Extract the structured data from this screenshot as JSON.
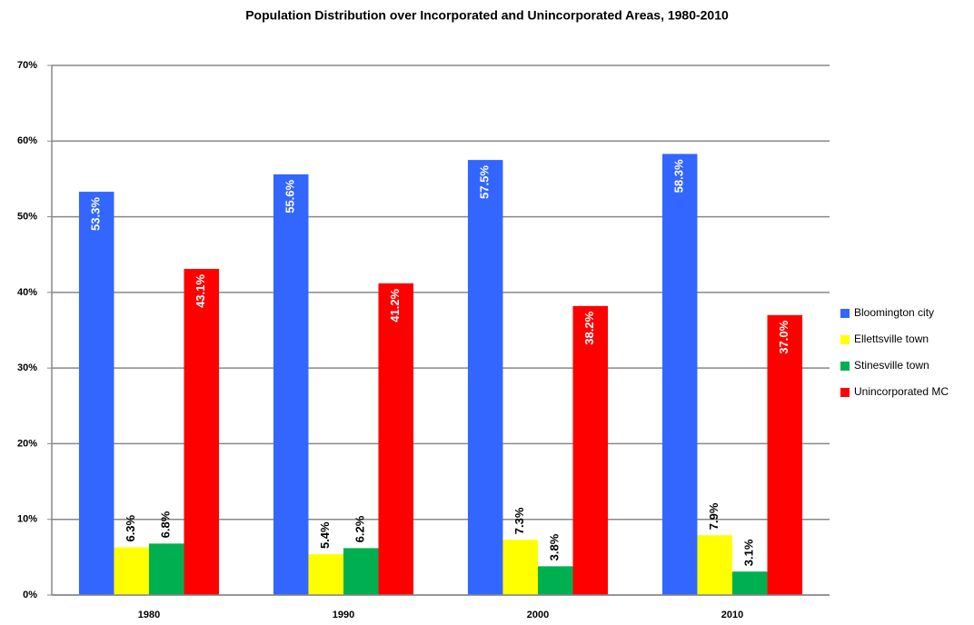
{
  "chart_data": {
    "type": "bar",
    "title": "Population Distribution over Incorporated and Unincorporated Areas, 1980-2010",
    "categories": [
      "1980",
      "1990",
      "2000",
      "2010"
    ],
    "series": [
      {
        "name": "Bloomington city",
        "color": "#3366ff",
        "values": [
          53.3,
          55.6,
          57.5,
          58.3
        ],
        "value_labels": [
          "53.3%",
          "55.6%",
          "57.5%",
          "58.3%"
        ]
      },
      {
        "name": "Ellettsville town",
        "color": "#ffff00",
        "values": [
          6.3,
          5.4,
          7.3,
          7.9
        ],
        "value_labels": [
          "6.3%",
          "5.4%",
          "7.3%",
          "7.9%"
        ]
      },
      {
        "name": "Stinesville town",
        "color": "#00b050",
        "values": [
          6.8,
          6.2,
          3.8,
          3.1
        ],
        "value_labels": [
          "6.8%",
          "6.2%",
          "3.8%",
          "3.1%"
        ]
      },
      {
        "name": "Unincorporated MC",
        "color": "#ff0000",
        "values": [
          43.1,
          41.2,
          38.2,
          37.0
        ],
        "value_labels": [
          "43.1%",
          "41.2%",
          "38.2%",
          "37.0%"
        ]
      }
    ],
    "ylim": [
      0,
      70
    ],
    "yticks": [
      {
        "value": 0,
        "label": "0%"
      },
      {
        "value": 10,
        "label": "10%"
      },
      {
        "value": 20,
        "label": "20%"
      },
      {
        "value": 30,
        "label": "30%"
      },
      {
        "value": 40,
        "label": "40%"
      },
      {
        "value": 50,
        "label": "50%"
      },
      {
        "value": 60,
        "label": "60%"
      },
      {
        "value": 70,
        "label": "70%"
      }
    ],
    "grid": true,
    "legend": "right"
  }
}
